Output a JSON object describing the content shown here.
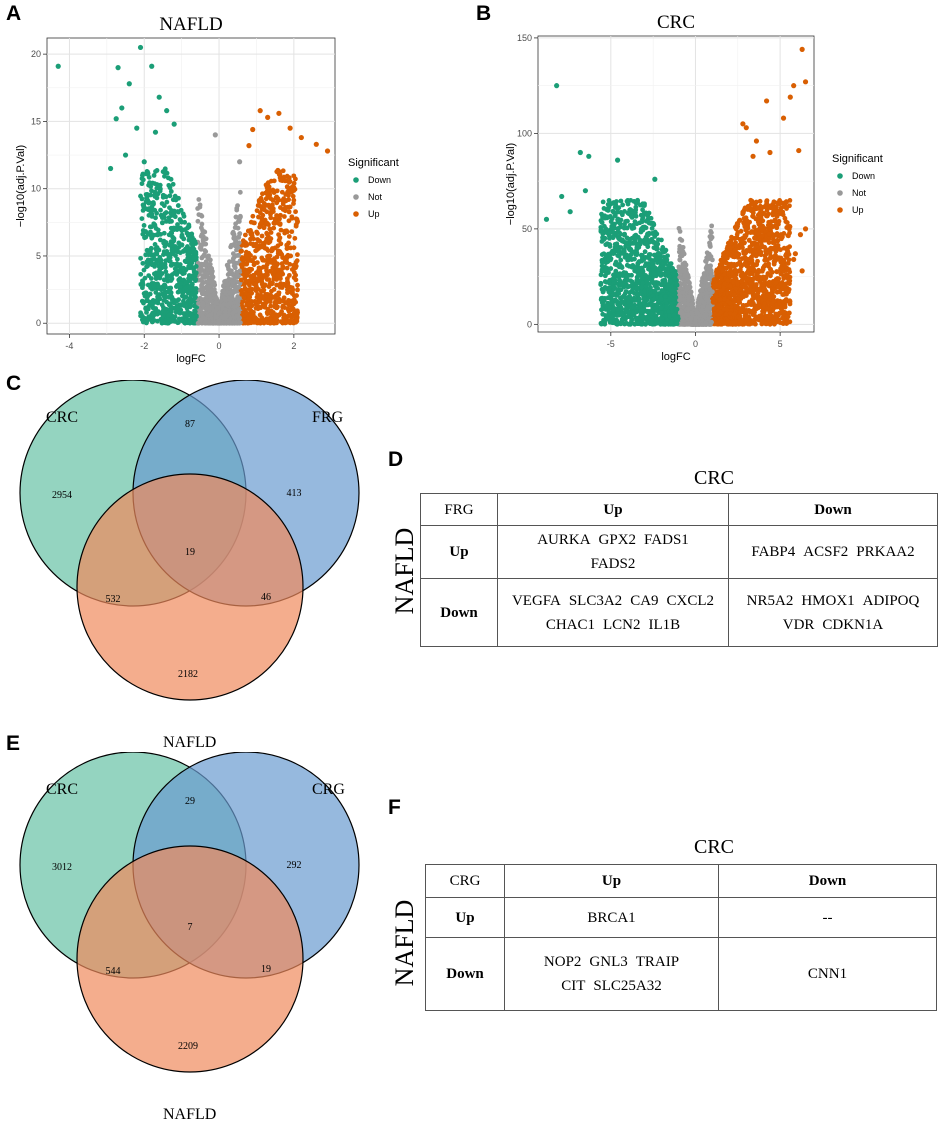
{
  "colors": {
    "down": "#1b9e77",
    "not": "#999999",
    "up": "#d95f02",
    "venn_crc": "#66c2a5",
    "venn_set": "#6a9bd0",
    "venn_nafld": "#f08a5d"
  },
  "panel_labels": {
    "a": "A",
    "b": "B",
    "c": "C",
    "d": "D",
    "e": "E",
    "f": "F"
  },
  "chart_data": [
    {
      "type": "scatter",
      "title": "NAFLD",
      "xlabel": "logFC",
      "ylabel": "−log10(adj.P.Val)",
      "xlim": [
        -4.6,
        3.1
      ],
      "ylim": [
        -0.8,
        21.2
      ],
      "xticks": [
        -4,
        -2,
        0,
        2
      ],
      "yticks": [
        0,
        5,
        10,
        15,
        20
      ],
      "legend": {
        "title": "Significant",
        "position": "right",
        "entries": [
          "Down",
          "Not",
          "Up"
        ]
      },
      "series": [
        {
          "name": "Down",
          "color": "#1b9e77",
          "points": [
            [
              -4.3,
              19.1
            ],
            [
              -2.9,
              11.5
            ],
            [
              -2.7,
              19
            ],
            [
              -2.6,
              16
            ],
            [
              -2.1,
              20.5
            ],
            [
              -1.8,
              19.1
            ],
            [
              -2.4,
              17.8
            ],
            [
              -2.75,
              15.2
            ],
            [
              -2.2,
              14.5
            ],
            [
              -1.6,
              16.8
            ],
            [
              -1.4,
              15.8
            ],
            [
              -1.2,
              14.8
            ],
            [
              -1.7,
              14.2
            ],
            [
              -2.5,
              12.5
            ],
            [
              -2.0,
              12.0
            ]
          ]
        },
        {
          "name": "Not",
          "color": "#999999",
          "points": [
            [
              0,
              0.2
            ],
            [
              0.3,
              1.5
            ],
            [
              -0.4,
              2.2
            ],
            [
              -0.1,
              14
            ],
            [
              0.55,
              12
            ]
          ]
        },
        {
          "name": "Up",
          "color": "#d95f02",
          "points": [
            [
              2.6,
              13.3
            ],
            [
              2.9,
              12.8
            ],
            [
              2.2,
              13.8
            ],
            [
              1.9,
              14.5
            ],
            [
              1.6,
              15.6
            ],
            [
              1.3,
              15.3
            ],
            [
              2.0,
              4.3
            ],
            [
              1.1,
              15.8
            ],
            [
              0.9,
              14.4
            ],
            [
              0.8,
              13.2
            ]
          ]
        }
      ]
    },
    {
      "type": "scatter",
      "title": "CRC",
      "xlabel": "logFC",
      "ylabel": "−log10(adj.P.Val)",
      "xlim": [
        -9.3,
        7.0
      ],
      "ylim": [
        -4,
        151
      ],
      "xticks": [
        -5,
        0,
        5
      ],
      "yticks": [
        0,
        50,
        100,
        150
      ],
      "legend": {
        "title": "Significant",
        "position": "right",
        "entries": [
          "Down",
          "Not",
          "Up"
        ]
      },
      "series": [
        {
          "name": "Down",
          "color": "#1b9e77",
          "points": [
            [
              -8.2,
              125
            ],
            [
              -8.8,
              55
            ],
            [
              -6.8,
              90
            ],
            [
              -6.3,
              88
            ],
            [
              -4.6,
              86
            ],
            [
              -6.5,
              70
            ],
            [
              -7.9,
              67
            ],
            [
              -7.4,
              59
            ],
            [
              -2.4,
              76
            ]
          ]
        },
        {
          "name": "Not",
          "color": "#999999",
          "points": [
            [
              0,
              1
            ],
            [
              0.4,
              12
            ],
            [
              -0.4,
              8
            ]
          ]
        },
        {
          "name": "Up",
          "color": "#d95f02",
          "points": [
            [
              6.3,
              144
            ],
            [
              6.5,
              127
            ],
            [
              5.8,
              125
            ],
            [
              5.6,
              119
            ],
            [
              4.2,
              117
            ],
            [
              5.2,
              108
            ],
            [
              2.8,
              105
            ],
            [
              3.0,
              103
            ],
            [
              3.6,
              96
            ],
            [
              6.1,
              91
            ],
            [
              4.4,
              90
            ],
            [
              3.4,
              88
            ],
            [
              6.5,
              50
            ],
            [
              6.2,
              47
            ],
            [
              5.9,
              37
            ],
            [
              6.3,
              28
            ],
            [
              5.8,
              34
            ]
          ]
        }
      ]
    }
  ],
  "venn_c": {
    "left": "CRC",
    "right": "FRG",
    "bottom": "NAFLD",
    "crc_only": "2954",
    "crc_frg": "87",
    "frg_only": "413",
    "all": "19",
    "crc_nafld": "532",
    "frg_nafld": "46",
    "nafld_only": "2182"
  },
  "venn_e": {
    "left": "CRC",
    "right": "CRG",
    "bottom": "NAFLD",
    "crc_only": "3012",
    "crc_crg": "29",
    "crg_only": "292",
    "all": "7",
    "crc_nafld": "544",
    "crg_nafld": "19",
    "nafld_only": "2209"
  },
  "table_d": {
    "top_header": "CRC",
    "side_header": "NAFLD",
    "corner": "FRG",
    "col_up": "Up",
    "col_down": "Down",
    "row_up": "Up",
    "row_down": "Down",
    "up_up": [
      [
        "AURKA",
        "GPX2",
        "FADS1"
      ],
      [
        "FADS2"
      ]
    ],
    "up_down": [
      [
        "FABP4",
        "ACSF2",
        "PRKAA2"
      ]
    ],
    "down_up": [
      [
        "VEGFA",
        "SLC3A2",
        "CA9",
        "CXCL2"
      ],
      [
        "CHAC1",
        "LCN2",
        "IL1B"
      ]
    ],
    "down_down": [
      [
        "NR5A2",
        "HMOX1",
        "ADIPOQ"
      ],
      [
        "VDR",
        "CDKN1A"
      ]
    ]
  },
  "table_f": {
    "top_header": "CRC",
    "side_header": "NAFLD",
    "corner": "CRG",
    "col_up": "Up",
    "col_down": "Down",
    "row_up": "Up",
    "row_down": "Down",
    "up_up": [
      [
        "BRCA1"
      ]
    ],
    "up_down": [
      [
        "--"
      ]
    ],
    "down_up": [
      [
        "NOP2",
        "GNL3",
        "TRAIP"
      ],
      [
        "CIT",
        "SLC25A32"
      ]
    ],
    "down_down": [
      [
        "CNN1"
      ]
    ]
  }
}
